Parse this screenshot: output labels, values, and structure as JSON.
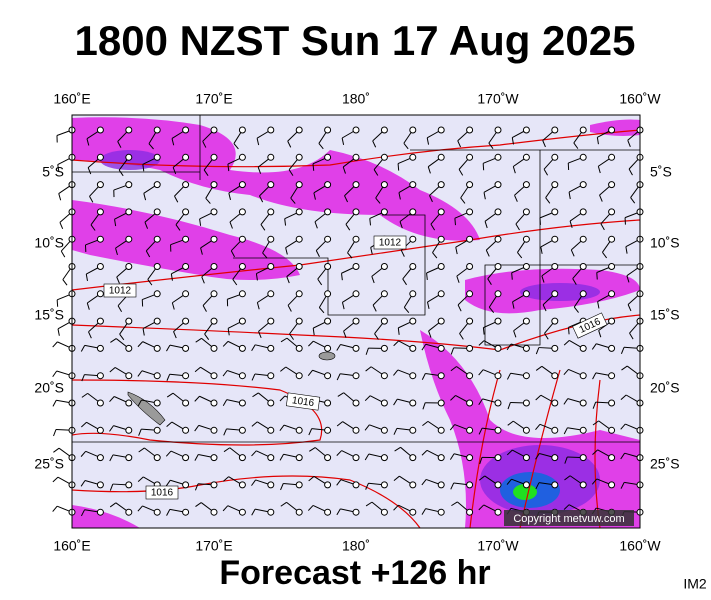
{
  "title": "1800 NZST Sun 17 Aug 2025",
  "footer": "Forecast +126 hr",
  "image_id": "IM2",
  "copyright": "Copyright metvuw.com",
  "longitude_labels": [
    "160˚E",
    "170˚E",
    "180˚",
    "170˚W",
    "160˚W"
  ],
  "latitude_labels": [
    "5˚S",
    "10˚S",
    "15˚S",
    "20˚S",
    "25˚S"
  ],
  "isobar_labels": [
    "1012",
    "1012",
    "1016",
    "1016",
    "1016"
  ]
}
